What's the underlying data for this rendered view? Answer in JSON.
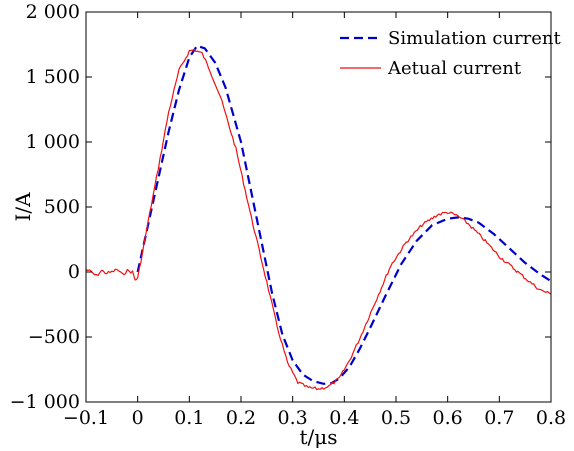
{
  "chart_data": {
    "type": "line",
    "xlabel": "t/μs",
    "ylabel": "I/A",
    "xlim": [
      -0.1,
      0.8
    ],
    "ylim": [
      -1000,
      2000
    ],
    "xticks": [
      -0.1,
      0,
      0.1,
      0.2,
      0.3,
      0.4,
      0.5,
      0.6,
      0.7,
      0.8
    ],
    "xtick_labels": [
      "−0.1",
      "0",
      "0.1",
      "0.2",
      "0.3",
      "0.4",
      "0.5",
      "0.6",
      "0.7",
      "0.8"
    ],
    "yticks": [
      -1000,
      -500,
      0,
      500,
      1000,
      1500,
      2000
    ],
    "ytick_labels": [
      "−1 000",
      "−500",
      "0",
      "500",
      "1 000",
      "1 500",
      "2 000"
    ],
    "grid": false,
    "legend_position": "top-right",
    "series": [
      {
        "name": "Simulation current",
        "color": "#0000cc",
        "style": "dashed",
        "x": [
          0,
          0.02,
          0.04,
          0.06,
          0.08,
          0.1,
          0.115,
          0.13,
          0.15,
          0.17,
          0.2,
          0.23,
          0.26,
          0.28,
          0.3,
          0.32,
          0.34,
          0.36,
          0.375,
          0.39,
          0.41,
          0.43,
          0.45,
          0.48,
          0.51,
          0.54,
          0.57,
          0.6,
          0.62,
          0.64,
          0.66,
          0.69,
          0.72,
          0.75,
          0.78,
          0.8
        ],
        "y": [
          0,
          360,
          720,
          1080,
          1400,
          1650,
          1740,
          1720,
          1610,
          1420,
          1000,
          420,
          -160,
          -480,
          -680,
          -790,
          -840,
          -860,
          -855,
          -820,
          -730,
          -590,
          -430,
          -180,
          60,
          240,
          360,
          410,
          420,
          410,
          380,
          290,
          180,
          70,
          -20,
          -70
        ]
      },
      {
        "name": "Aetual current",
        "color": "#ee1111",
        "style": "solid",
        "x": [
          -0.1,
          -0.09,
          -0.08,
          -0.07,
          -0.06,
          -0.05,
          -0.04,
          -0.03,
          -0.02,
          -0.01,
          -0.005,
          0,
          0.02,
          0.04,
          0.06,
          0.08,
          0.1,
          0.11,
          0.125,
          0.14,
          0.16,
          0.19,
          0.22,
          0.25,
          0.27,
          0.29,
          0.31,
          0.33,
          0.35,
          0.37,
          0.39,
          0.41,
          0.43,
          0.46,
          0.49,
          0.52,
          0.55,
          0.58,
          0.6,
          0.62,
          0.64,
          0.67,
          0.7,
          0.73,
          0.76,
          0.78,
          0.8
        ],
        "y": [
          20,
          0,
          -30,
          10,
          -10,
          0,
          20,
          -20,
          10,
          0,
          -60,
          -50,
          380,
          800,
          1230,
          1550,
          1700,
          1710,
          1680,
          1550,
          1350,
          950,
          420,
          -80,
          -420,
          -700,
          -850,
          -890,
          -900,
          -880,
          -820,
          -680,
          -510,
          -230,
          50,
          230,
          360,
          440,
          460,
          430,
          370,
          250,
          120,
          20,
          -80,
          -140,
          -170
        ]
      }
    ]
  }
}
